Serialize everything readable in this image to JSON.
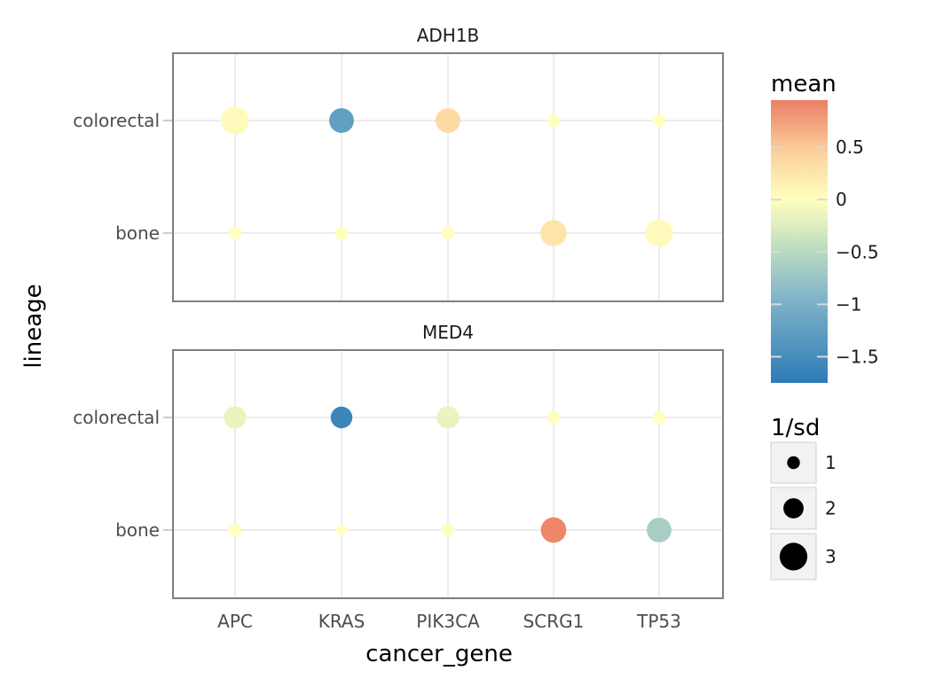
{
  "chart_data": {
    "type": "scatter",
    "xlabel": "cancer_gene",
    "ylabel": "lineage",
    "categories": [
      "APC",
      "KRAS",
      "PIK3CA",
      "SCRG1",
      "TP53"
    ],
    "y_categories": [
      "bone",
      "colorectal"
    ],
    "grid": true,
    "facets": [
      {
        "title": "ADH1B",
        "points": [
          {
            "x": "APC",
            "y": "colorectal",
            "mean": 0.05,
            "inv_sd": 3.0
          },
          {
            "x": "KRAS",
            "y": "colorectal",
            "mean": -1.25,
            "inv_sd": 2.6
          },
          {
            "x": "PIK3CA",
            "y": "colorectal",
            "mean": 0.35,
            "inv_sd": 2.6
          },
          {
            "x": "SCRG1",
            "y": "colorectal",
            "mean": 0.0,
            "inv_sd": 1.0
          },
          {
            "x": "TP53",
            "y": "colorectal",
            "mean": 0.0,
            "inv_sd": 1.0
          },
          {
            "x": "APC",
            "y": "bone",
            "mean": 0.0,
            "inv_sd": 1.0
          },
          {
            "x": "KRAS",
            "y": "bone",
            "mean": 0.0,
            "inv_sd": 1.1
          },
          {
            "x": "PIK3CA",
            "y": "bone",
            "mean": 0.0,
            "inv_sd": 1.0
          },
          {
            "x": "SCRG1",
            "y": "bone",
            "mean": 0.25,
            "inv_sd": 2.8
          },
          {
            "x": "TP53",
            "y": "bone",
            "mean": 0.05,
            "inv_sd": 3.0
          }
        ]
      },
      {
        "title": "MED4",
        "points": [
          {
            "x": "APC",
            "y": "colorectal",
            "mean": -0.15,
            "inv_sd": 2.3
          },
          {
            "x": "KRAS",
            "y": "colorectal",
            "mean": -1.6,
            "inv_sd": 2.2
          },
          {
            "x": "PIK3CA",
            "y": "colorectal",
            "mean": -0.15,
            "inv_sd": 2.3
          },
          {
            "x": "SCRG1",
            "y": "colorectal",
            "mean": 0.0,
            "inv_sd": 1.0
          },
          {
            "x": "TP53",
            "y": "colorectal",
            "mean": 0.0,
            "inv_sd": 1.0
          },
          {
            "x": "APC",
            "y": "bone",
            "mean": 0.0,
            "inv_sd": 1.0
          },
          {
            "x": "KRAS",
            "y": "bone",
            "mean": 0.0,
            "inv_sd": 0.7
          },
          {
            "x": "PIK3CA",
            "y": "bone",
            "mean": 0.0,
            "inv_sd": 1.0
          },
          {
            "x": "SCRG1",
            "y": "bone",
            "mean": 0.9,
            "inv_sd": 2.7
          },
          {
            "x": "TP53",
            "y": "bone",
            "mean": -0.65,
            "inv_sd": 2.6
          }
        ]
      }
    ],
    "color_legend": {
      "title": "mean",
      "min": -1.75,
      "max": 0.95,
      "ticks": [
        0.5,
        0,
        -0.5,
        -1,
        -1.5
      ],
      "tick_labels": [
        "0.5",
        "0",
        "−0.5",
        "−1",
        "−1.5"
      ],
      "colors": {
        "low": "#2c7bb6",
        "lowmid": "#abd9e9",
        "mid": "#ffffbf",
        "highmid": "#fdae61",
        "high": "#ec7e65"
      }
    },
    "size_legend": {
      "title": "1/sd",
      "values": [
        1,
        2,
        3
      ],
      "labels": [
        "1",
        "2",
        "3"
      ]
    }
  }
}
